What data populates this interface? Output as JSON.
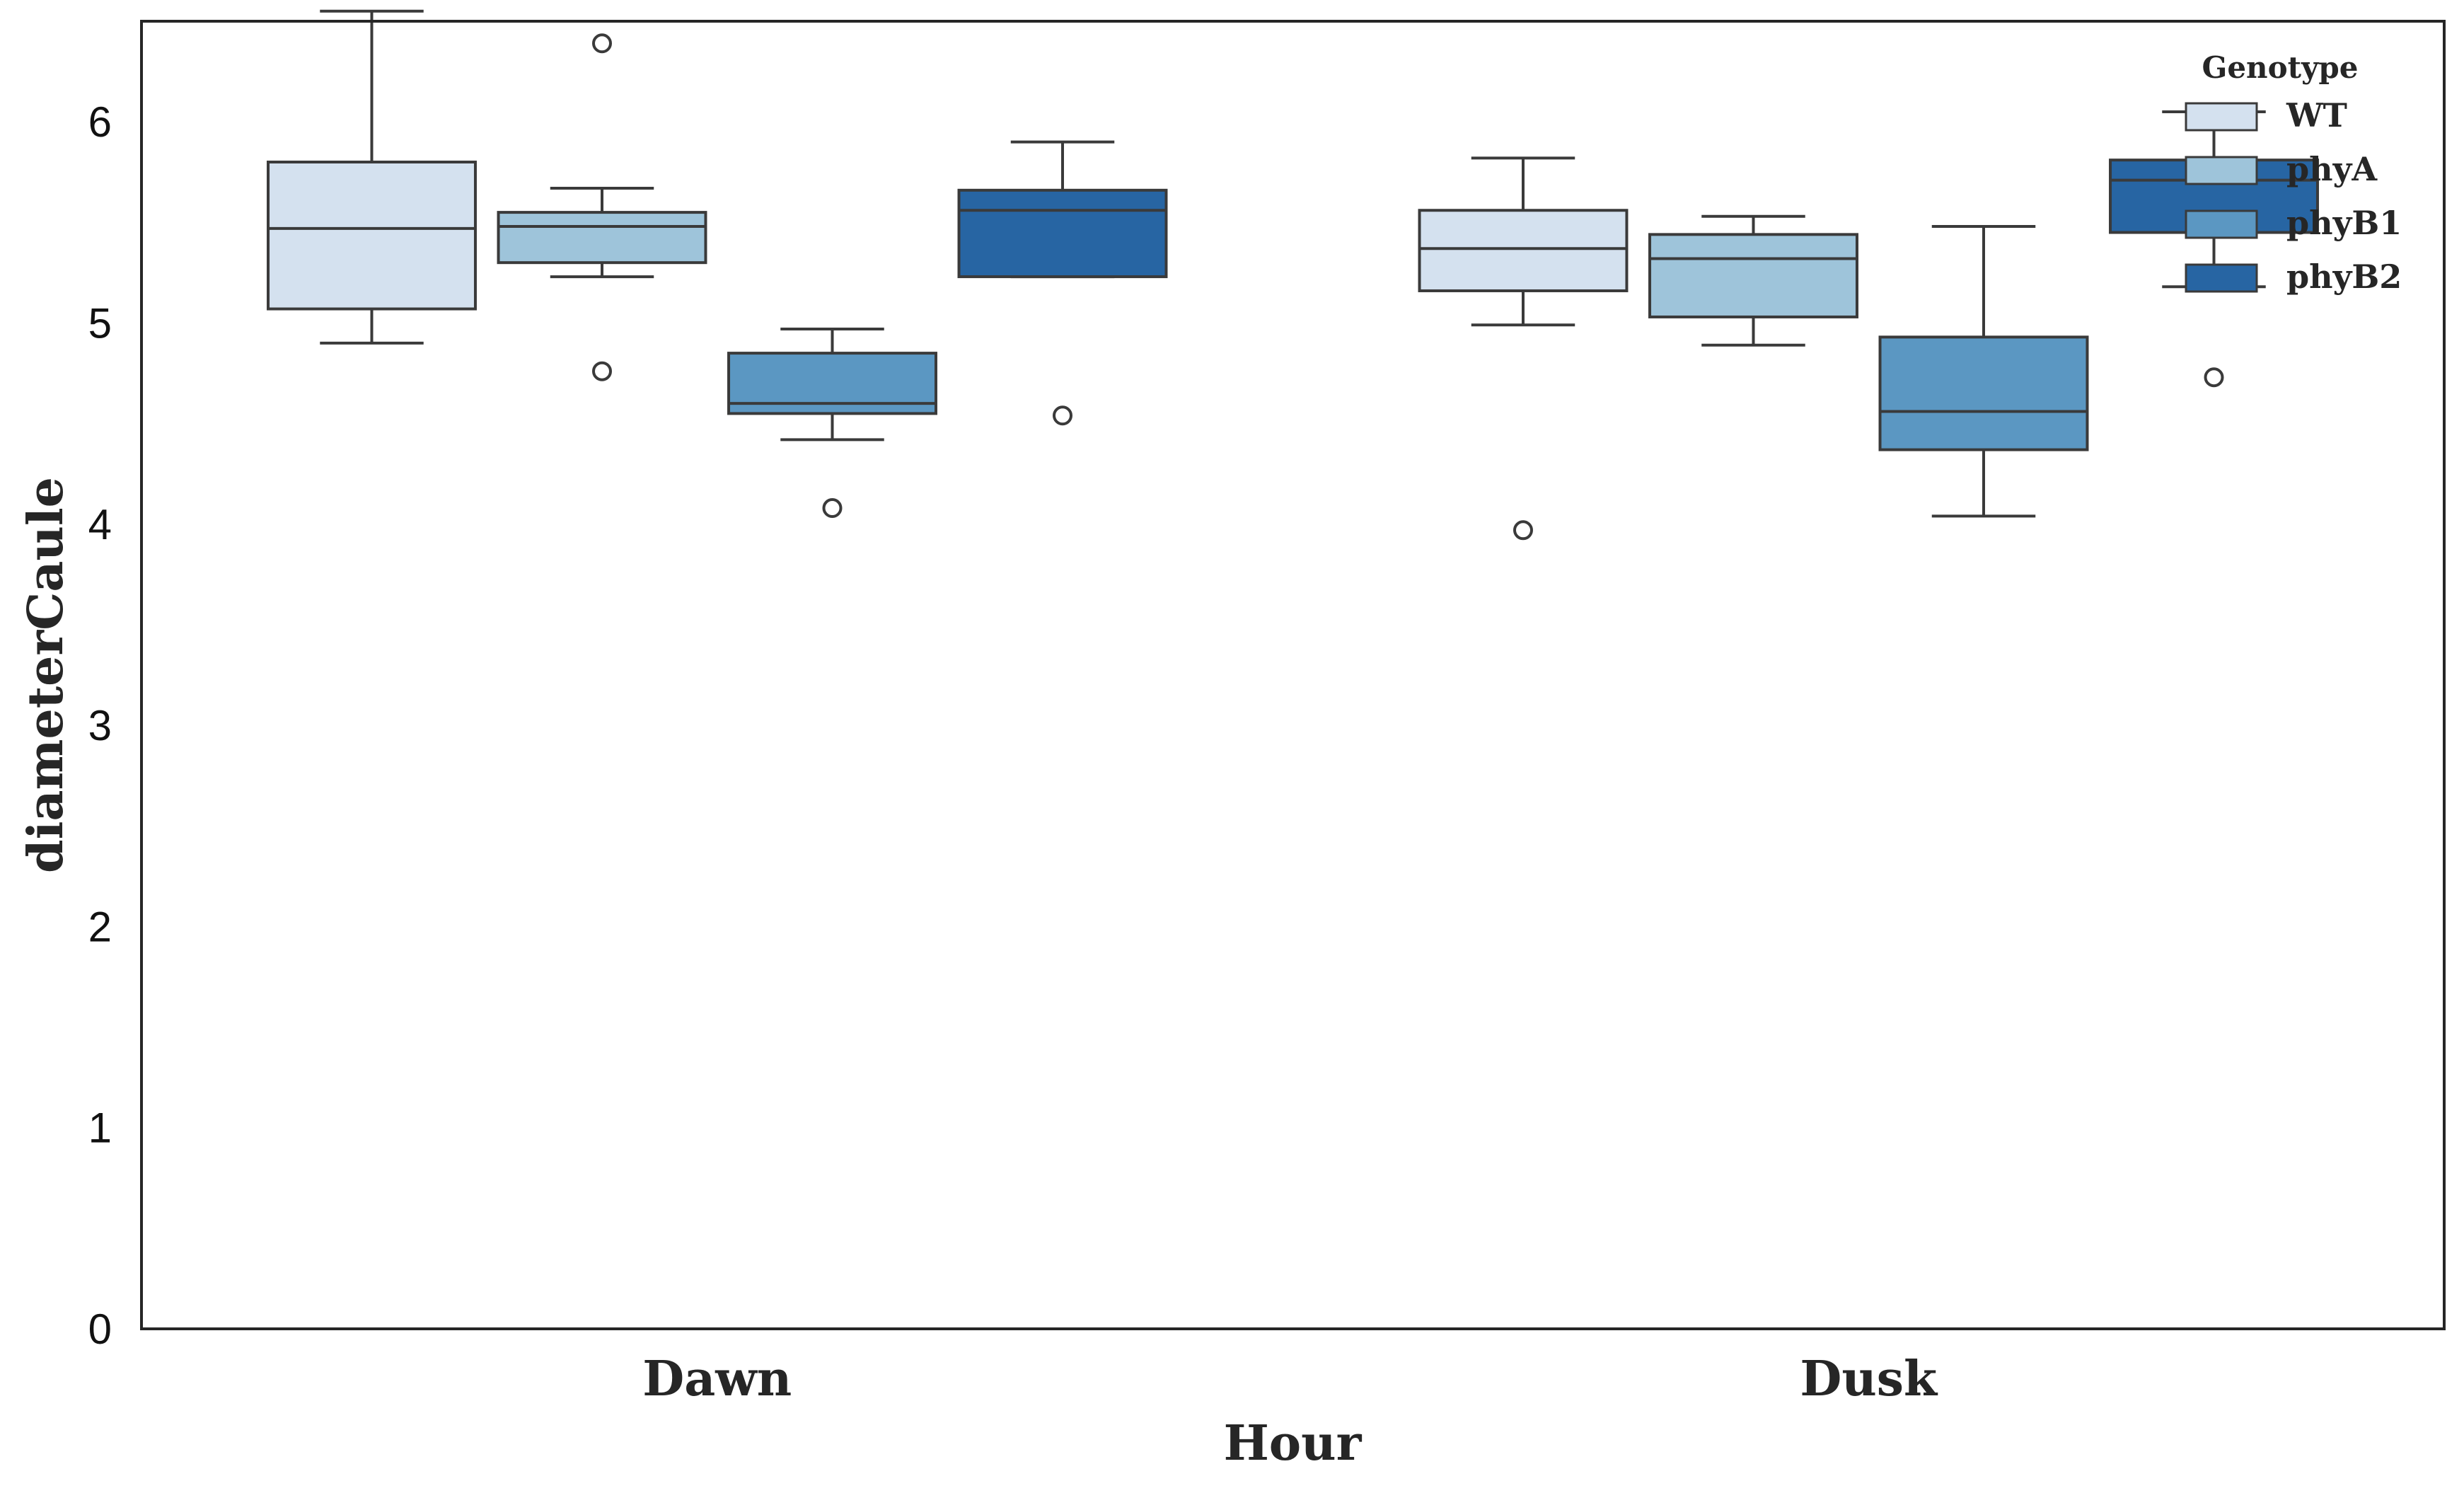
{
  "chart_data": {
    "type": "box",
    "xlabel": "Hour",
    "ylabel": "diameterCaule",
    "categories": [
      "Dawn",
      "Dusk"
    ],
    "legend": {
      "title": "Genotype",
      "placement": "top-right"
    },
    "ylim": [
      0,
      6.5
    ],
    "yticks": [
      0,
      1,
      2,
      3,
      4,
      5,
      6
    ],
    "grid": false,
    "series": [
      {
        "name": "WT",
        "color": "#d4e1ef",
        "boxes": [
          {
            "category": "Dawn",
            "whisker_low": 4.9,
            "q1": 5.07,
            "median": 5.47,
            "q3": 5.8,
            "whisker_high": 6.55,
            "outliers": []
          },
          {
            "category": "Dusk",
            "whisker_low": 4.99,
            "q1": 5.16,
            "median": 5.37,
            "q3": 5.56,
            "whisker_high": 5.82,
            "outliers": [
              3.97
            ]
          }
        ]
      },
      {
        "name": "phyA",
        "color": "#9ec4da",
        "boxes": [
          {
            "category": "Dawn",
            "whisker_low": 5.23,
            "q1": 5.3,
            "median": 5.48,
            "q3": 5.55,
            "whisker_high": 5.67,
            "outliers": [
              6.39,
              4.76
            ]
          },
          {
            "category": "Dusk",
            "whisker_low": 4.89,
            "q1": 5.03,
            "median": 5.32,
            "q3": 5.44,
            "whisker_high": 5.53,
            "outliers": []
          }
        ]
      },
      {
        "name": "phyB1",
        "color": "#5b97c2",
        "boxes": [
          {
            "category": "Dawn",
            "whisker_low": 4.42,
            "q1": 4.55,
            "median": 4.6,
            "q3": 4.85,
            "whisker_high": 4.97,
            "outliers": [
              4.08
            ]
          },
          {
            "category": "Dusk",
            "whisker_low": 4.04,
            "q1": 4.37,
            "median": 4.56,
            "q3": 4.93,
            "whisker_high": 5.48,
            "outliers": []
          }
        ]
      },
      {
        "name": "phyB2",
        "color": "#2765a3",
        "boxes": [
          {
            "category": "Dawn",
            "whisker_low": 5.23,
            "q1": 5.23,
            "median": 5.56,
            "q3": 5.66,
            "whisker_high": 5.9,
            "outliers": [
              4.54
            ]
          },
          {
            "category": "Dusk",
            "whisker_low": 5.18,
            "q1": 5.45,
            "median": 5.71,
            "q3": 5.81,
            "whisker_high": 6.05,
            "outliers": [
              4.73
            ]
          }
        ]
      }
    ]
  }
}
